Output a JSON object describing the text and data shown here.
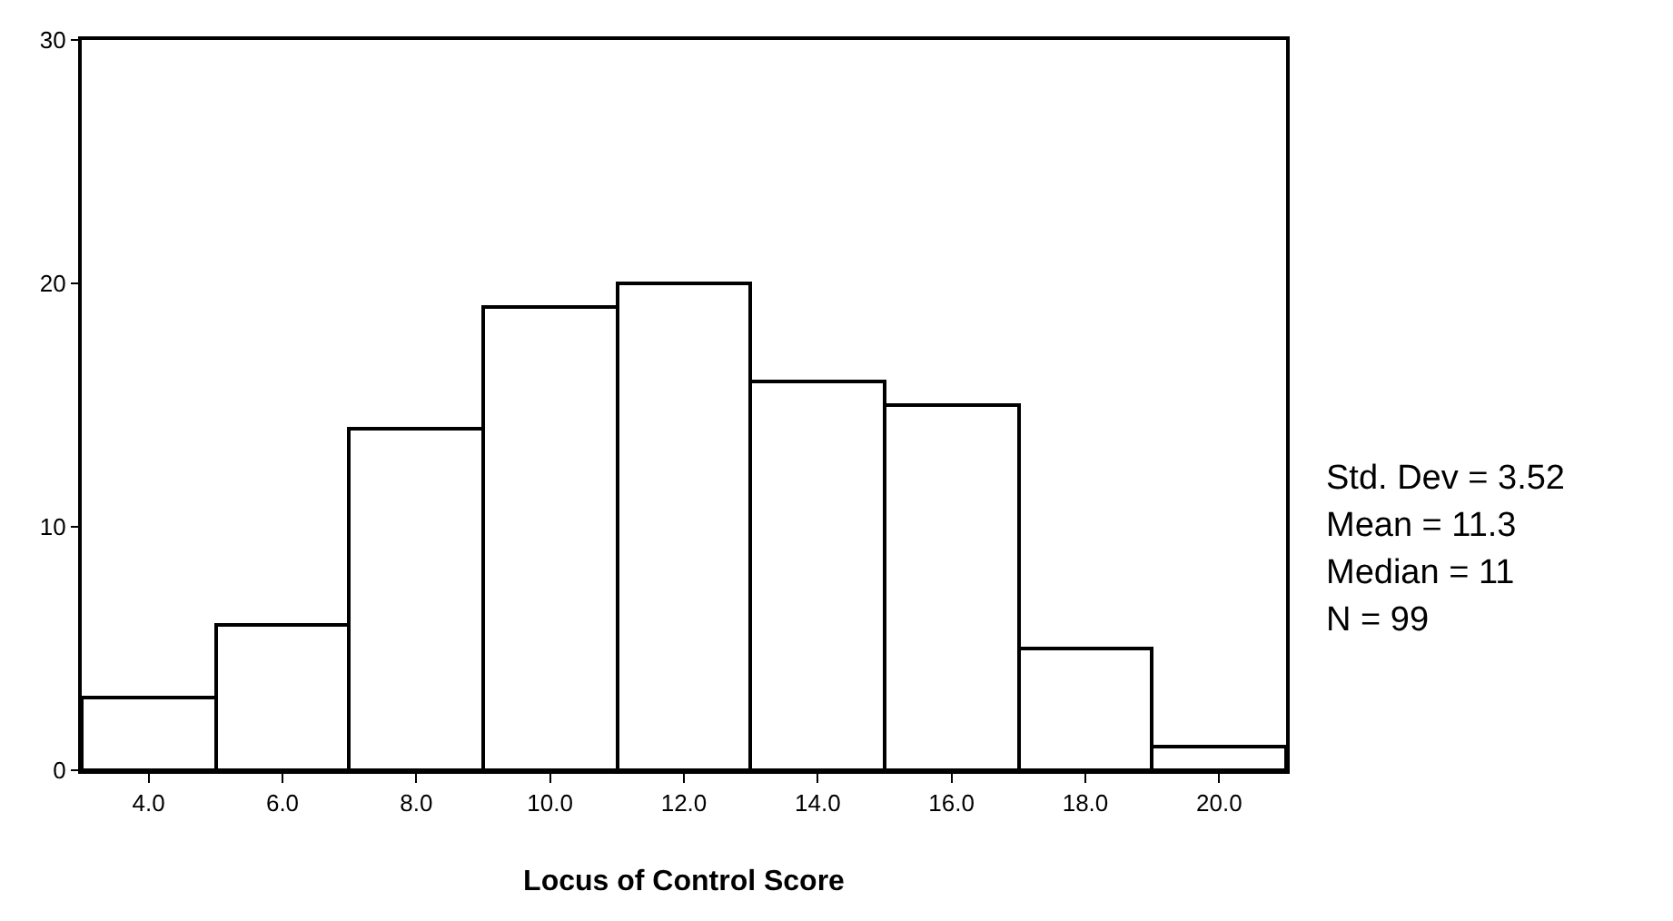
{
  "chart_data": {
    "type": "histogram",
    "xlabel": "Locus of Control Score",
    "bins": [
      3,
      5,
      7,
      9,
      11,
      13,
      15,
      17,
      19,
      21
    ],
    "values": [
      3,
      6,
      14,
      19,
      20,
      16,
      15,
      5,
      1
    ],
    "color": "#ffffff",
    "xlim": [
      3,
      21
    ],
    "xticks": [
      {
        "value": 4,
        "label": "4.0"
      },
      {
        "value": 6,
        "label": "6.0"
      },
      {
        "value": 8,
        "label": "8.0"
      },
      {
        "value": 10,
        "label": "10.0"
      },
      {
        "value": 12,
        "label": "12.0"
      },
      {
        "value": 14,
        "label": "14.0"
      },
      {
        "value": 16,
        "label": "16.0"
      },
      {
        "value": 18,
        "label": "18.0"
      },
      {
        "value": 20,
        "label": "20.0"
      }
    ],
    "ylim": [
      0,
      30
    ],
    "yticks": [
      0,
      10,
      20,
      30
    ],
    "grid": false,
    "legend": false,
    "annotations": [
      "Std. Dev = 3.52",
      "Mean = 11.3",
      "Median = 11",
      "N = 99"
    ]
  }
}
